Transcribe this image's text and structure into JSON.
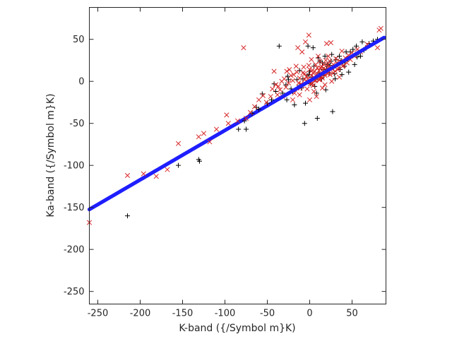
{
  "chart_data": {
    "type": "scatter",
    "title": "",
    "xlabel": "K-band ({/Symbol m}K)",
    "ylabel": "Ka-band ({/Symbol m}K)",
    "xlim": [
      -260,
      90
    ],
    "ylim": [
      -265,
      88
    ],
    "xticks": [
      -250,
      -200,
      -150,
      -100,
      -50,
      0,
      50
    ],
    "yticks": [
      -250,
      -200,
      -150,
      -100,
      -50,
      0,
      50
    ],
    "grid": false,
    "legend": "none",
    "series": [
      {
        "marker": "plus",
        "color": "#000000",
        "points": [
          [
            -215,
            -160
          ],
          [
            -155,
            -100
          ],
          [
            -131,
            -93
          ],
          [
            -130,
            -95
          ],
          [
            -77,
            -47
          ],
          [
            -75,
            -57
          ],
          [
            -68,
            -38
          ],
          [
            -63,
            -31
          ],
          [
            -56,
            -15
          ],
          [
            -45,
            -22
          ],
          [
            -40,
            -12
          ],
          [
            -36,
            42
          ],
          [
            -32,
            -14
          ],
          [
            -28,
            -4
          ],
          [
            -27,
            -22
          ],
          [
            -26,
            6
          ],
          [
            -20,
            -12
          ],
          [
            -18,
            -28
          ],
          [
            -12,
            13
          ],
          [
            -10,
            -8
          ],
          [
            -6,
            -50
          ],
          [
            -5,
            -26
          ],
          [
            -2,
            42
          ],
          [
            -1,
            8
          ],
          [
            1,
            -3
          ],
          [
            4,
            40
          ],
          [
            5,
            18
          ],
          [
            8,
            -14
          ],
          [
            9,
            -44
          ],
          [
            10,
            28
          ],
          [
            12,
            24
          ],
          [
            13,
            5
          ],
          [
            15,
            22
          ],
          [
            16,
            14
          ],
          [
            18,
            30
          ],
          [
            19,
            -10
          ],
          [
            21,
            20
          ],
          [
            23,
            10
          ],
          [
            26,
            32
          ],
          [
            27,
            -36
          ],
          [
            28,
            16
          ],
          [
            29,
            9
          ],
          [
            31,
            26
          ],
          [
            33,
            20
          ],
          [
            35,
            30
          ],
          [
            37,
            25
          ],
          [
            38,
            8
          ],
          [
            39,
            22
          ],
          [
            41,
            18
          ],
          [
            43,
            35
          ],
          [
            45,
            27
          ],
          [
            46,
            11
          ],
          [
            48,
            35
          ],
          [
            51,
            38
          ],
          [
            53,
            20
          ],
          [
            55,
            42
          ],
          [
            56,
            29
          ],
          [
            58,
            34
          ],
          [
            60,
            30
          ],
          [
            62,
            47
          ],
          [
            64,
            37
          ],
          [
            66,
            40
          ],
          [
            70,
            45
          ],
          [
            75,
            48
          ],
          [
            80,
            50
          ],
          [
            -12,
            -5
          ],
          [
            3,
            5
          ],
          [
            7,
            2
          ],
          [
            -3,
            7
          ],
          [
            0,
            12
          ],
          [
            14,
            3
          ],
          [
            17,
            7
          ],
          [
            -8,
            3
          ],
          [
            20,
            15
          ],
          [
            24,
            19
          ],
          [
            -15,
            2
          ],
          [
            6,
            -6
          ],
          [
            11,
            10
          ],
          [
            -22,
            -9
          ],
          [
            -50,
            -26
          ],
          [
            -60,
            -33
          ],
          [
            -42,
            -3
          ],
          [
            -84,
            -57
          ],
          [
            30,
            3
          ],
          [
            36,
            14
          ],
          [
            42,
            24
          ],
          [
            25,
            24
          ],
          [
            -25,
            2
          ]
        ]
      },
      {
        "marker": "x",
        "color": "#d62728",
        "points": [
          [
            -260,
            -168
          ],
          [
            -215,
            -112
          ],
          [
            -196,
            -110
          ],
          [
            -181,
            -113
          ],
          [
            -168,
            -105
          ],
          [
            -155,
            -74
          ],
          [
            -131,
            -66
          ],
          [
            -125,
            -62
          ],
          [
            -118,
            -72
          ],
          [
            -110,
            -57
          ],
          [
            -98,
            -40
          ],
          [
            -96,
            -50
          ],
          [
            -85,
            -47
          ],
          [
            -78,
            40
          ],
          [
            -75,
            -44
          ],
          [
            -70,
            -37
          ],
          [
            -65,
            -30
          ],
          [
            -60,
            -22
          ],
          [
            -55,
            -17
          ],
          [
            -51,
            -25
          ],
          [
            -46,
            -18
          ],
          [
            -44,
            -9
          ],
          [
            -40,
            -4
          ],
          [
            -38,
            -16
          ],
          [
            -35,
            -10
          ],
          [
            -33,
            0
          ],
          [
            -30,
            3
          ],
          [
            -28,
            -7
          ],
          [
            -25,
            -2
          ],
          [
            -22,
            7
          ],
          [
            -20,
            1
          ],
          [
            -18,
            -14
          ],
          [
            -15,
            11
          ],
          [
            -12,
            4
          ],
          [
            -10,
            -3
          ],
          [
            -8,
            10
          ],
          [
            -6,
            2
          ],
          [
            -4,
            6
          ],
          [
            -2,
            -1
          ],
          [
            -1,
            55
          ],
          [
            0,
            14
          ],
          [
            1,
            3
          ],
          [
            2,
            7
          ],
          [
            3,
            -2
          ],
          [
            4,
            10
          ],
          [
            5,
            5
          ],
          [
            6,
            12
          ],
          [
            7,
            1
          ],
          [
            8,
            8
          ],
          [
            9,
            16
          ],
          [
            10,
            6
          ],
          [
            11,
            13
          ],
          [
            12,
            2
          ],
          [
            13,
            9
          ],
          [
            14,
            18
          ],
          [
            15,
            4
          ],
          [
            16,
            11
          ],
          [
            17,
            20
          ],
          [
            18,
            7
          ],
          [
            19,
            14
          ],
          [
            20,
            45
          ],
          [
            21,
            9
          ],
          [
            22,
            17
          ],
          [
            23,
            12
          ],
          [
            24,
            24
          ],
          [
            25,
            46
          ],
          [
            26,
            15
          ],
          [
            28,
            20
          ],
          [
            30,
            12
          ],
          [
            32,
            22
          ],
          [
            34,
            16
          ],
          [
            36,
            24
          ],
          [
            38,
            36
          ],
          [
            40,
            19
          ],
          [
            42,
            28
          ],
          [
            44,
            22
          ],
          [
            46,
            31
          ],
          [
            48,
            26
          ],
          [
            50,
            34
          ],
          [
            53,
            30
          ],
          [
            56,
            38
          ],
          [
            60,
            35
          ],
          [
            68,
            44
          ],
          [
            80,
            40
          ],
          [
            82,
            61
          ],
          [
            84,
            63
          ],
          [
            -9,
            35
          ],
          [
            -5,
            47
          ],
          [
            -14,
            40
          ],
          [
            8,
            -18
          ],
          [
            -24,
            14
          ],
          [
            2,
            26
          ],
          [
            15,
            -8
          ],
          [
            26,
            0
          ],
          [
            -32,
            -18
          ],
          [
            -20,
            -22
          ],
          [
            -12,
            -16
          ],
          [
            0,
            -22
          ],
          [
            5,
            -12
          ],
          [
            -42,
            12
          ],
          [
            10,
            30
          ],
          [
            -16,
            18
          ],
          [
            31,
            27
          ],
          [
            35,
            5
          ],
          [
            -3,
            -9
          ],
          [
            7,
            20
          ],
          [
            -27,
            12
          ],
          [
            18,
            -4
          ],
          [
            22,
            30
          ],
          [
            -7,
            17
          ],
          [
            39,
            18
          ],
          [
            12,
            24
          ],
          [
            -11,
            -8
          ],
          [
            4,
            -5
          ],
          [
            28,
            10
          ],
          [
            -1,
            19
          ],
          [
            19,
            25
          ],
          [
            -19,
            8
          ],
          [
            33,
            14
          ],
          [
            -37,
            -6
          ],
          [
            6,
            1
          ],
          [
            14,
            6
          ],
          [
            -2,
            3
          ],
          [
            9,
            4
          ],
          [
            16,
            15
          ],
          [
            -6,
            9
          ],
          [
            3,
            13
          ],
          [
            11,
            2
          ],
          [
            21,
            20
          ],
          [
            24,
            8
          ],
          [
            -13,
            -2
          ],
          [
            -9,
            -5
          ],
          [
            1,
            -3
          ],
          [
            13,
            16
          ],
          [
            17,
            9
          ]
        ]
      },
      {
        "marker": "dot",
        "color": "#1f1fff",
        "line": {
          "slope": 0.588,
          "intercept": 0.5,
          "from": -260,
          "to": 88
        }
      }
    ]
  }
}
